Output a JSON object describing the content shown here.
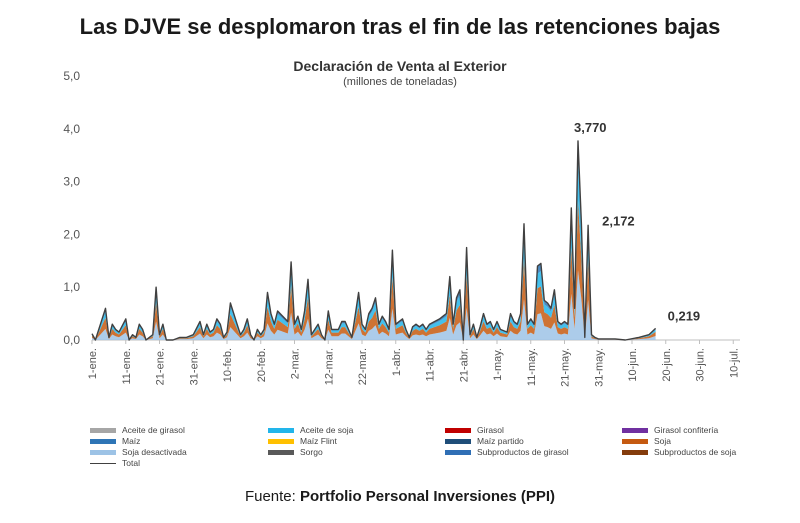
{
  "headline": "Las DJVE se desplomaron tras el fin de las retenciones bajas",
  "source": {
    "prefix": "Fuente: ",
    "name": "Portfolio Personal Inversiones (PPI)"
  },
  "chart_data": {
    "type": "area",
    "title": "Declaración de Venta al Exterior",
    "subtitle": "(millones de toneladas)",
    "ylim": [
      0,
      5
    ],
    "y_ticks": [
      "0,0",
      "1,0",
      "2,0",
      "3,0",
      "4,0",
      "5,0"
    ],
    "y_tick_values": [
      0,
      1,
      2,
      3,
      4,
      5
    ],
    "x_range": [
      0,
      192
    ],
    "x_ticks": [
      {
        "day": 0,
        "label": "1-ene."
      },
      {
        "day": 10,
        "label": "11-ene."
      },
      {
        "day": 20,
        "label": "21-ene."
      },
      {
        "day": 30,
        "label": "31-ene."
      },
      {
        "day": 40,
        "label": "10-feb."
      },
      {
        "day": 50,
        "label": "20-feb."
      },
      {
        "day": 60,
        "label": "2-mar."
      },
      {
        "day": 70,
        "label": "12-mar."
      },
      {
        "day": 80,
        "label": "22-mar."
      },
      {
        "day": 90,
        "label": "1-abr."
      },
      {
        "day": 100,
        "label": "11-abr."
      },
      {
        "day": 110,
        "label": "21-abr."
      },
      {
        "day": 120,
        "label": "1-may."
      },
      {
        "day": 130,
        "label": "11-may."
      },
      {
        "day": 140,
        "label": "21-may."
      },
      {
        "day": 150,
        "label": "31-may."
      },
      {
        "day": 160,
        "label": "10-jun."
      },
      {
        "day": 170,
        "label": "20-jun."
      },
      {
        "day": 180,
        "label": "30-jun."
      },
      {
        "day": 190,
        "label": "10-jul."
      }
    ],
    "series_total": [
      [
        0,
        0.12
      ],
      [
        1,
        0.0
      ],
      [
        4,
        0.6
      ],
      [
        5,
        0.05
      ],
      [
        6,
        0.3
      ],
      [
        7,
        0.2
      ],
      [
        8,
        0.15
      ],
      [
        10,
        0.4
      ],
      [
        11,
        0.0
      ],
      [
        12,
        0.1
      ],
      [
        13,
        0.05
      ],
      [
        14,
        0.3
      ],
      [
        15,
        0.2
      ],
      [
        16,
        0.0
      ],
      [
        18,
        0.1
      ],
      [
        19,
        1.0
      ],
      [
        20,
        0.1
      ],
      [
        21,
        0.3
      ],
      [
        22,
        0.0
      ],
      [
        24,
        0.0
      ],
      [
        26,
        0.05
      ],
      [
        28,
        0.05
      ],
      [
        30,
        0.1
      ],
      [
        32,
        0.35
      ],
      [
        33,
        0.1
      ],
      [
        34,
        0.3
      ],
      [
        35,
        0.15
      ],
      [
        36,
        0.2
      ],
      [
        37,
        0.4
      ],
      [
        38,
        0.3
      ],
      [
        39,
        0.05
      ],
      [
        40,
        0.15
      ],
      [
        41,
        0.7
      ],
      [
        43,
        0.3
      ],
      [
        44,
        0.1
      ],
      [
        45,
        0.2
      ],
      [
        46,
        0.4
      ],
      [
        47,
        0.1
      ],
      [
        48,
        0.0
      ],
      [
        49,
        0.2
      ],
      [
        50,
        0.1
      ],
      [
        51,
        0.2
      ],
      [
        52,
        0.9
      ],
      [
        53,
        0.5
      ],
      [
        54,
        0.3
      ],
      [
        55,
        0.55
      ],
      [
        58,
        0.35
      ],
      [
        59,
        1.48
      ],
      [
        60,
        0.3
      ],
      [
        61,
        0.45
      ],
      [
        62,
        0.2
      ],
      [
        63,
        0.55
      ],
      [
        64,
        1.15
      ],
      [
        65,
        0.1
      ],
      [
        66,
        0.2
      ],
      [
        67,
        0.3
      ],
      [
        68,
        0.1
      ],
      [
        69,
        0.0
      ],
      [
        70,
        0.55
      ],
      [
        71,
        0.2
      ],
      [
        73,
        0.2
      ],
      [
        74,
        0.35
      ],
      [
        75,
        0.35
      ],
      [
        77,
        0.05
      ],
      [
        79,
        0.9
      ],
      [
        80,
        0.3
      ],
      [
        81,
        0.2
      ],
      [
        82,
        0.5
      ],
      [
        83,
        0.6
      ],
      [
        84,
        0.8
      ],
      [
        85,
        0.3
      ],
      [
        86,
        0.45
      ],
      [
        87,
        0.35
      ],
      [
        88,
        0.2
      ],
      [
        89,
        1.7
      ],
      [
        90,
        0.3
      ],
      [
        91,
        0.35
      ],
      [
        92,
        0.4
      ],
      [
        93,
        0.2
      ],
      [
        94,
        0.05
      ],
      [
        95,
        0.25
      ],
      [
        96,
        0.3
      ],
      [
        97,
        0.25
      ],
      [
        98,
        0.3
      ],
      [
        99,
        0.2
      ],
      [
        100,
        0.3
      ],
      [
        103,
        0.4
      ],
      [
        104,
        0.45
      ],
      [
        105,
        0.5
      ],
      [
        106,
        1.2
      ],
      [
        107,
        0.3
      ],
      [
        108,
        0.8
      ],
      [
        109,
        0.95
      ],
      [
        110,
        0.0
      ],
      [
        111,
        1.75
      ],
      [
        112,
        0.1
      ],
      [
        113,
        0.3
      ],
      [
        114,
        0.05
      ],
      [
        115,
        0.25
      ],
      [
        116,
        0.5
      ],
      [
        117,
        0.3
      ],
      [
        118,
        0.35
      ],
      [
        119,
        0.2
      ],
      [
        120,
        0.35
      ],
      [
        121,
        0.2
      ],
      [
        123,
        0.15
      ],
      [
        124,
        0.5
      ],
      [
        125,
        0.35
      ],
      [
        126,
        0.3
      ],
      [
        127,
        0.5
      ],
      [
        128,
        2.2
      ],
      [
        129,
        0.3
      ],
      [
        130,
        0.4
      ],
      [
        131,
        0.3
      ],
      [
        132,
        1.4
      ],
      [
        133,
        1.45
      ],
      [
        134,
        0.75
      ],
      [
        135,
        0.7
      ],
      [
        136,
        0.6
      ],
      [
        137,
        0.95
      ],
      [
        138,
        0.35
      ],
      [
        139,
        0.3
      ],
      [
        140,
        0.35
      ],
      [
        141,
        0.3
      ],
      [
        142,
        2.5
      ],
      [
        143,
        0.6
      ],
      [
        144,
        3.77
      ],
      [
        145,
        2.2
      ],
      [
        146,
        0.05
      ],
      [
        147,
        2.172
      ],
      [
        148,
        0.1
      ],
      [
        149,
        0.05
      ],
      [
        150,
        0.02
      ],
      [
        155,
        0.02
      ],
      [
        158,
        0.0
      ],
      [
        162,
        0.05
      ],
      [
        165,
        0.1
      ],
      [
        167,
        0.219
      ]
    ],
    "annotations": [
      {
        "day": 144,
        "value": 3.77,
        "label": "3,770"
      },
      {
        "day": 147,
        "value": 2.172,
        "label": "2,172"
      },
      {
        "day": 167,
        "value": 0.219,
        "label": "0,219"
      }
    ],
    "legend": [
      {
        "name": "Aceite de girasol",
        "color": "#a6a6a6",
        "kind": "area"
      },
      {
        "name": "Aceite de soja",
        "color": "#22b5ea",
        "kind": "area"
      },
      {
        "name": "Girasol",
        "color": "#c00000",
        "kind": "area"
      },
      {
        "name": "Girasol confitería",
        "color": "#7030a0",
        "kind": "area"
      },
      {
        "name": "Maíz",
        "color": "#2e75b6",
        "kind": "area"
      },
      {
        "name": "Maíz Flint",
        "color": "#ffc000",
        "kind": "area"
      },
      {
        "name": "Maíz partido",
        "color": "#1f4e79",
        "kind": "area"
      },
      {
        "name": "Soja",
        "color": "#c55a11",
        "kind": "area"
      },
      {
        "name": "Soja desactivada",
        "color": "#9dc3e6",
        "kind": "area"
      },
      {
        "name": "Sorgo",
        "color": "#595959",
        "kind": "area"
      },
      {
        "name": "Subproductos de girasol",
        "color": "#2f6fb5",
        "kind": "area"
      },
      {
        "name": "Subproductos de soja",
        "color": "#843c0c",
        "kind": "area"
      },
      {
        "name": "Total",
        "color": "#404040",
        "kind": "line"
      }
    ]
  }
}
